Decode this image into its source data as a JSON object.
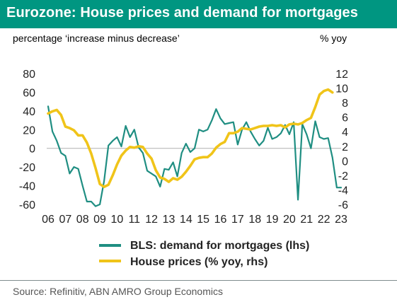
{
  "title": "Eurozone: House prices and demand for mortgages",
  "subtitle_left": "percentage ‘increase minus decrease’",
  "subtitle_right": "% yoy",
  "source": "Source:  Refinitiv, ABN AMRO Group Economics",
  "colors": {
    "header": "#009681",
    "bls": "#1f8e82",
    "house": "#f0c419"
  },
  "chart_data": {
    "type": "line",
    "x_ticks": [
      "06",
      "07",
      "08",
      "09",
      "10",
      "11",
      "12",
      "13",
      "14",
      "15",
      "16",
      "17",
      "18",
      "19",
      "20",
      "21",
      "22",
      "23"
    ],
    "y_left": {
      "ticks": [
        "80",
        "60",
        "40",
        "20",
        "0",
        "-20",
        "-40",
        "-60"
      ],
      "range": [
        -60,
        80
      ]
    },
    "y_right": {
      "ticks": [
        "12",
        "10",
        "8",
        "6",
        "4",
        "2",
        "0",
        "-2",
        "-4",
        "-6"
      ],
      "range": [
        -6,
        12
      ]
    },
    "grid": false,
    "legend_position": "bottom",
    "series": [
      {
        "name": "BLS: demand for mortgages (lhs)",
        "axis": "left",
        "x": [
          2006.0,
          2006.25,
          2006.5,
          2006.75,
          2007.0,
          2007.25,
          2007.5,
          2007.75,
          2008.0,
          2008.25,
          2008.5,
          2008.75,
          2009.0,
          2009.25,
          2009.5,
          2009.75,
          2010.0,
          2010.25,
          2010.5,
          2010.75,
          2011.0,
          2011.25,
          2011.5,
          2011.75,
          2012.0,
          2012.25,
          2012.5,
          2012.75,
          2013.0,
          2013.25,
          2013.5,
          2013.75,
          2014.0,
          2014.25,
          2014.5,
          2014.75,
          2015.0,
          2015.25,
          2015.5,
          2015.75,
          2016.0,
          2016.25,
          2016.5,
          2016.75,
          2017.0,
          2017.25,
          2017.5,
          2017.75,
          2018.0,
          2018.25,
          2018.5,
          2018.75,
          2019.0,
          2019.25,
          2019.5,
          2019.75,
          2020.0,
          2020.25,
          2020.5,
          2020.75,
          2021.0,
          2021.25,
          2021.5,
          2021.75,
          2022.0,
          2022.25,
          2022.5,
          2022.75,
          2023.0
        ],
        "values": [
          45,
          18,
          8,
          -5,
          -8,
          -27,
          -20,
          -22,
          -40,
          -57,
          -57,
          -62,
          -60,
          -35,
          3,
          8,
          12,
          2,
          24,
          12,
          20,
          1,
          -5,
          -24,
          -27,
          -30,
          -41,
          -22,
          -23,
          -15,
          -30,
          -5,
          5,
          -4,
          0,
          20,
          18,
          20,
          30,
          42,
          32,
          26,
          27,
          28,
          4,
          20,
          28,
          18,
          10,
          3,
          8,
          22,
          10,
          12,
          16,
          25,
          15,
          28,
          -55,
          26,
          15,
          0,
          29,
          12,
          10,
          11,
          -10,
          -42,
          -42
        ],
        "domain_end": 2022.75
      },
      {
        "name": "House prices (% yoy, rhs)",
        "axis": "right",
        "x": [
          2006.0,
          2006.25,
          2006.5,
          2006.75,
          2007.0,
          2007.25,
          2007.5,
          2007.75,
          2008.0,
          2008.25,
          2008.5,
          2008.75,
          2009.0,
          2009.25,
          2009.5,
          2009.75,
          2010.0,
          2010.25,
          2010.5,
          2010.75,
          2011.0,
          2011.25,
          2011.5,
          2011.75,
          2012.0,
          2012.25,
          2012.5,
          2012.75,
          2013.0,
          2013.25,
          2013.5,
          2013.75,
          2014.0,
          2014.25,
          2014.5,
          2014.75,
          2015.0,
          2015.25,
          2015.5,
          2015.75,
          2016.0,
          2016.25,
          2016.5,
          2016.75,
          2017.0,
          2017.25,
          2017.5,
          2017.75,
          2018.0,
          2018.25,
          2018.5,
          2018.75,
          2019.0,
          2019.25,
          2019.5,
          2019.75,
          2020.0,
          2020.25,
          2020.5,
          2020.75,
          2021.0,
          2021.25,
          2021.5,
          2021.75,
          2022.0,
          2022.25,
          2022.5
        ],
        "values": [
          6.5,
          6.8,
          7.0,
          6.3,
          4.7,
          4.5,
          4.2,
          3.5,
          3.5,
          2.5,
          1.0,
          -1.0,
          -3.2,
          -3.6,
          -3.3,
          -2.0,
          -0.5,
          0.7,
          1.4,
          1.9,
          1.8,
          2.0,
          1.9,
          1.0,
          0.3,
          -1.3,
          -2.3,
          -2.5,
          -2.9,
          -2.4,
          -2.6,
          -2.2,
          -1.5,
          -0.7,
          0.2,
          0.4,
          0.5,
          0.5,
          1.0,
          1.8,
          2.3,
          2.6,
          3.8,
          3.8,
          4.0,
          4.5,
          4.4,
          4.3,
          4.5,
          4.7,
          4.8,
          4.8,
          4.9,
          4.8,
          4.9,
          4.6,
          5.0,
          5.1,
          5.0,
          5.2,
          5.6,
          5.9,
          7.4,
          9.1,
          9.6,
          9.8,
          9.4
        ]
      }
    ]
  },
  "legend": {
    "bls_label": "BLS: demand for mortgages (lhs)",
    "house_label": "House prices (% yoy, rhs)"
  }
}
